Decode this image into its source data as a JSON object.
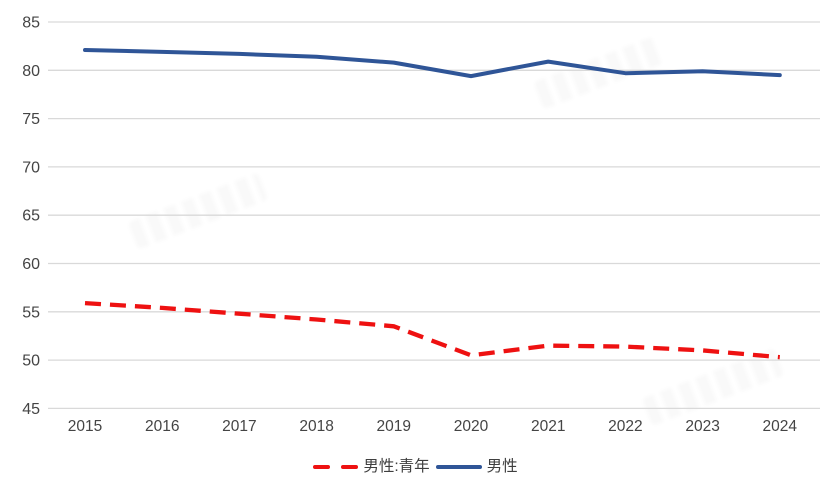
{
  "chart_data": {
    "type": "line",
    "title": "",
    "xlabel": "",
    "ylabel": "",
    "categories": [
      "2015",
      "2016",
      "2017",
      "2018",
      "2019",
      "2020",
      "2021",
      "2022",
      "2023",
      "2024"
    ],
    "yticks": [
      45,
      50,
      55,
      60,
      65,
      70,
      75,
      80,
      85
    ],
    "ylim": [
      45,
      85
    ],
    "grid": true,
    "legend_position": "bottom",
    "series": [
      {
        "name": "男性:青年",
        "style": "dashed",
        "color": "#EE1111",
        "values": [
          55.9,
          55.4,
          54.8,
          54.2,
          53.5,
          50.5,
          51.5,
          51.4,
          51.0,
          50.3
        ]
      },
      {
        "name": "男性",
        "style": "solid",
        "color": "#2F5597",
        "values": [
          82.1,
          81.9,
          81.7,
          81.4,
          80.8,
          79.4,
          80.9,
          79.7,
          79.9,
          79.5
        ]
      }
    ]
  },
  "legend": {
    "items": [
      {
        "label": "男性:青年",
        "color": "#EE1111"
      },
      {
        "label": "男性",
        "color": "#2F5597"
      }
    ]
  },
  "colors": {
    "gridline": "#D9D9D9",
    "tick_text": "#444444",
    "red_series": "#EE1111",
    "blue_series": "#2F5597"
  }
}
